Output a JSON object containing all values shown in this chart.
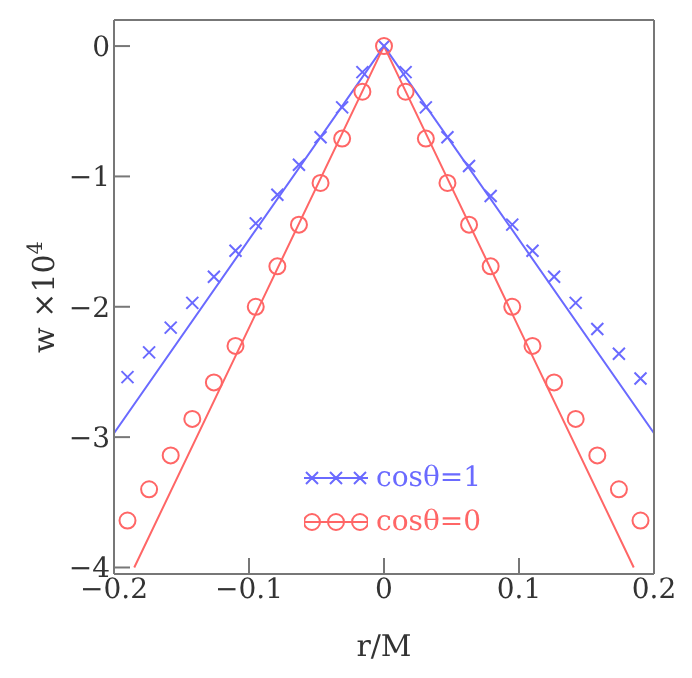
{
  "chart_data": {
    "type": "scatter",
    "xlabel": "r/M",
    "ylabel": "w ×10$^{4}$",
    "xlim": [
      -0.2,
      0.2
    ],
    "xticks": [
      -0.2,
      -0.1,
      0,
      0.1,
      0.2
    ],
    "ylim": [
      -4.05,
      0.2
    ],
    "yticks": [
      -4,
      -3,
      -2,
      -1,
      0
    ],
    "grid": false,
    "legend": "bottom",
    "series": [
      {
        "name": "cosθ=1",
        "marker": "cross",
        "color": "#6a6aff",
        "x": [
          -0.19,
          -0.174,
          -0.158,
          -0.142,
          -0.126,
          -0.11,
          -0.095,
          -0.079,
          -0.063,
          -0.047,
          -0.031,
          -0.016,
          0,
          0.016,
          0.031,
          0.047,
          0.063,
          0.079,
          0.095,
          0.11,
          0.126,
          0.142,
          0.158,
          0.174,
          0.19
        ],
        "values": [
          -2.54,
          -2.35,
          -2.16,
          -1.97,
          -1.77,
          -1.57,
          -1.36,
          -1.14,
          -0.91,
          -0.7,
          -0.47,
          -0.2,
          0,
          -0.2,
          -0.47,
          -0.7,
          -0.92,
          -1.15,
          -1.37,
          -1.57,
          -1.77,
          -1.97,
          -2.17,
          -2.36,
          -2.55
        ]
      },
      {
        "name": "cosθ=0",
        "marker": "circle",
        "color": "#ff6666",
        "x": [
          -0.19,
          -0.174,
          -0.158,
          -0.142,
          -0.126,
          -0.11,
          -0.095,
          -0.079,
          -0.063,
          -0.047,
          -0.031,
          -0.016,
          0,
          0.016,
          0.031,
          0.047,
          0.063,
          0.079,
          0.095,
          0.11,
          0.126,
          0.142,
          0.158,
          0.174,
          0.19
        ],
        "values": [
          -3.64,
          -3.4,
          -3.14,
          -2.86,
          -2.58,
          -2.3,
          -2.0,
          -1.69,
          -1.37,
          -1.05,
          -0.71,
          -0.35,
          0,
          -0.35,
          -0.71,
          -1.05,
          -1.37,
          -1.69,
          -2.0,
          -2.3,
          -2.58,
          -2.86,
          -3.14,
          -3.4,
          -3.64
        ]
      },
      {
        "type": "line",
        "line_style": "solid",
        "marker": "none",
        "color": "#6a6aff",
        "x": [
          -0.2,
          0,
          0.2
        ],
        "values": [
          -2.97,
          0,
          -2.97
        ]
      },
      {
        "type": "line",
        "line_style": "solid",
        "marker": "none",
        "color": "#ff6666",
        "x": [
          -0.185,
          0,
          0.185
        ],
        "values": [
          -4,
          0,
          -4
        ]
      }
    ]
  }
}
